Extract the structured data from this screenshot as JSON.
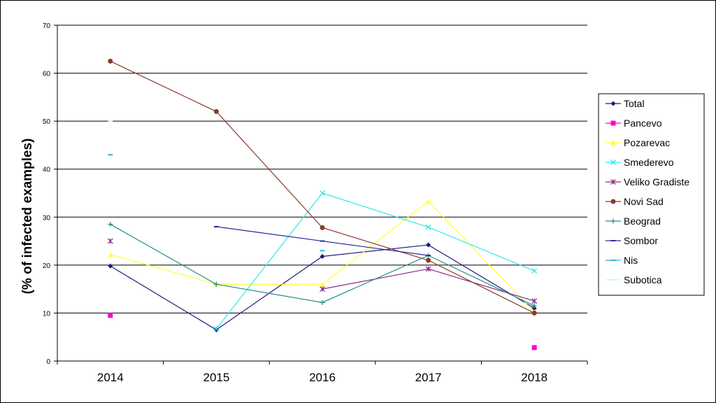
{
  "chart_data": {
    "type": "line",
    "ylabel": "(% of infected examples)",
    "xlabel": "",
    "x": [
      "2014",
      "2015",
      "2016",
      "2017",
      "2018"
    ],
    "ylim": [
      0,
      70
    ],
    "yticks": [
      0,
      10,
      20,
      30,
      40,
      50,
      60,
      70
    ],
    "grid": true,
    "legend_position": "right",
    "series": [
      {
        "name": "Total",
        "color": "#1a1a7a",
        "marker": "diamond",
        "values": [
          19.8,
          6.5,
          21.8,
          24.2,
          11.0
        ]
      },
      {
        "name": "Pancevo",
        "color": "#ff00cc",
        "marker": "square",
        "values": [
          9.5,
          null,
          null,
          null,
          2.8
        ]
      },
      {
        "name": "Pozarevac",
        "color": "#ffff33",
        "marker": "triangle",
        "values": [
          22.2,
          16.0,
          16.0,
          33.3,
          10.2
        ]
      },
      {
        "name": "Smederevo",
        "color": "#33e6e6",
        "marker": "x",
        "values": [
          null,
          6.7,
          35.0,
          27.9,
          18.8
        ]
      },
      {
        "name": "Veliko Gradiste",
        "color": "#8b2a8b",
        "marker": "star",
        "values": [
          25.0,
          null,
          15.0,
          19.2,
          12.5
        ]
      },
      {
        "name": "Novi Sad",
        "color": "#8b3a2a",
        "marker": "circle",
        "values": [
          62.5,
          52.0,
          27.8,
          21.0,
          10.0
        ]
      },
      {
        "name": "Beograd",
        "color": "#2a8c8c",
        "marker": "plus",
        "values": [
          28.5,
          16.0,
          12.2,
          22.0,
          11.5
        ]
      },
      {
        "name": "Sombor",
        "color": "#2a2a99",
        "marker": "dash",
        "values": [
          null,
          28.0,
          25.0,
          22.0,
          null
        ]
      },
      {
        "name": "Nis",
        "color": "#33b0d6",
        "marker": "dash",
        "values": [
          43.0,
          null,
          23.0,
          null,
          null
        ]
      },
      {
        "name": "Subotica",
        "color": "#ccf2ff",
        "marker": "dash",
        "values": [
          50.0,
          null,
          null,
          null,
          null
        ]
      }
    ]
  }
}
